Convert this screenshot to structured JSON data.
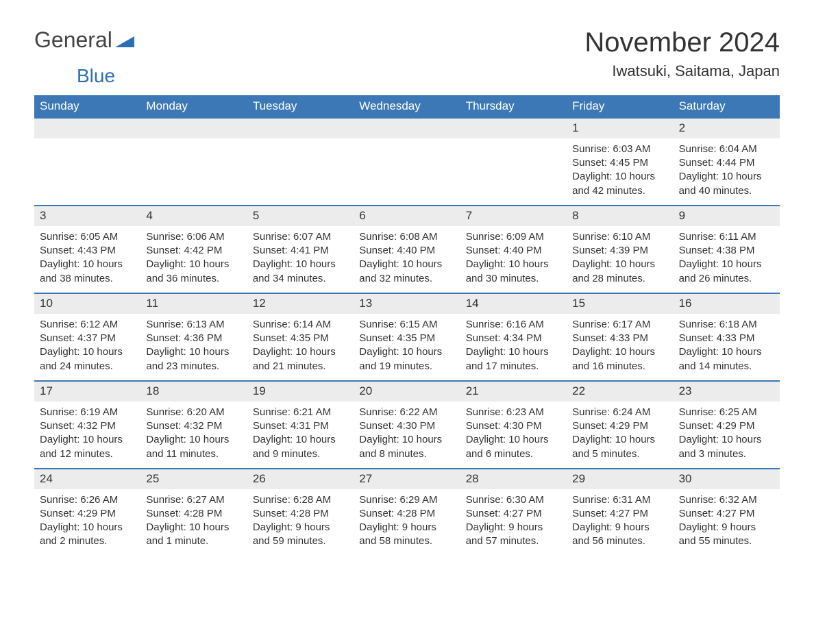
{
  "logo": {
    "text1": "General",
    "text2": "Blue"
  },
  "title": "November 2024",
  "location": "Iwatsuki, Saitama, Japan",
  "colors": {
    "header_bg": "#3b78b5",
    "header_text": "#ffffff",
    "band_bg": "#ececec",
    "row_border": "#3b78b5",
    "body_text": "#333333",
    "logo_blue": "#2d6fb5"
  },
  "daysOfWeek": [
    "Sunday",
    "Monday",
    "Tuesday",
    "Wednesday",
    "Thursday",
    "Friday",
    "Saturday"
  ],
  "weeks": [
    [
      {
        "n": "",
        "sunrise": "",
        "sunset": "",
        "daylight": ""
      },
      {
        "n": "",
        "sunrise": "",
        "sunset": "",
        "daylight": ""
      },
      {
        "n": "",
        "sunrise": "",
        "sunset": "",
        "daylight": ""
      },
      {
        "n": "",
        "sunrise": "",
        "sunset": "",
        "daylight": ""
      },
      {
        "n": "",
        "sunrise": "",
        "sunset": "",
        "daylight": ""
      },
      {
        "n": "1",
        "sunrise": "Sunrise: 6:03 AM",
        "sunset": "Sunset: 4:45 PM",
        "daylight": "Daylight: 10 hours and 42 minutes."
      },
      {
        "n": "2",
        "sunrise": "Sunrise: 6:04 AM",
        "sunset": "Sunset: 4:44 PM",
        "daylight": "Daylight: 10 hours and 40 minutes."
      }
    ],
    [
      {
        "n": "3",
        "sunrise": "Sunrise: 6:05 AM",
        "sunset": "Sunset: 4:43 PM",
        "daylight": "Daylight: 10 hours and 38 minutes."
      },
      {
        "n": "4",
        "sunrise": "Sunrise: 6:06 AM",
        "sunset": "Sunset: 4:42 PM",
        "daylight": "Daylight: 10 hours and 36 minutes."
      },
      {
        "n": "5",
        "sunrise": "Sunrise: 6:07 AM",
        "sunset": "Sunset: 4:41 PM",
        "daylight": "Daylight: 10 hours and 34 minutes."
      },
      {
        "n": "6",
        "sunrise": "Sunrise: 6:08 AM",
        "sunset": "Sunset: 4:40 PM",
        "daylight": "Daylight: 10 hours and 32 minutes."
      },
      {
        "n": "7",
        "sunrise": "Sunrise: 6:09 AM",
        "sunset": "Sunset: 4:40 PM",
        "daylight": "Daylight: 10 hours and 30 minutes."
      },
      {
        "n": "8",
        "sunrise": "Sunrise: 6:10 AM",
        "sunset": "Sunset: 4:39 PM",
        "daylight": "Daylight: 10 hours and 28 minutes."
      },
      {
        "n": "9",
        "sunrise": "Sunrise: 6:11 AM",
        "sunset": "Sunset: 4:38 PM",
        "daylight": "Daylight: 10 hours and 26 minutes."
      }
    ],
    [
      {
        "n": "10",
        "sunrise": "Sunrise: 6:12 AM",
        "sunset": "Sunset: 4:37 PM",
        "daylight": "Daylight: 10 hours and 24 minutes."
      },
      {
        "n": "11",
        "sunrise": "Sunrise: 6:13 AM",
        "sunset": "Sunset: 4:36 PM",
        "daylight": "Daylight: 10 hours and 23 minutes."
      },
      {
        "n": "12",
        "sunrise": "Sunrise: 6:14 AM",
        "sunset": "Sunset: 4:35 PM",
        "daylight": "Daylight: 10 hours and 21 minutes."
      },
      {
        "n": "13",
        "sunrise": "Sunrise: 6:15 AM",
        "sunset": "Sunset: 4:35 PM",
        "daylight": "Daylight: 10 hours and 19 minutes."
      },
      {
        "n": "14",
        "sunrise": "Sunrise: 6:16 AM",
        "sunset": "Sunset: 4:34 PM",
        "daylight": "Daylight: 10 hours and 17 minutes."
      },
      {
        "n": "15",
        "sunrise": "Sunrise: 6:17 AM",
        "sunset": "Sunset: 4:33 PM",
        "daylight": "Daylight: 10 hours and 16 minutes."
      },
      {
        "n": "16",
        "sunrise": "Sunrise: 6:18 AM",
        "sunset": "Sunset: 4:33 PM",
        "daylight": "Daylight: 10 hours and 14 minutes."
      }
    ],
    [
      {
        "n": "17",
        "sunrise": "Sunrise: 6:19 AM",
        "sunset": "Sunset: 4:32 PM",
        "daylight": "Daylight: 10 hours and 12 minutes."
      },
      {
        "n": "18",
        "sunrise": "Sunrise: 6:20 AM",
        "sunset": "Sunset: 4:32 PM",
        "daylight": "Daylight: 10 hours and 11 minutes."
      },
      {
        "n": "19",
        "sunrise": "Sunrise: 6:21 AM",
        "sunset": "Sunset: 4:31 PM",
        "daylight": "Daylight: 10 hours and 9 minutes."
      },
      {
        "n": "20",
        "sunrise": "Sunrise: 6:22 AM",
        "sunset": "Sunset: 4:30 PM",
        "daylight": "Daylight: 10 hours and 8 minutes."
      },
      {
        "n": "21",
        "sunrise": "Sunrise: 6:23 AM",
        "sunset": "Sunset: 4:30 PM",
        "daylight": "Daylight: 10 hours and 6 minutes."
      },
      {
        "n": "22",
        "sunrise": "Sunrise: 6:24 AM",
        "sunset": "Sunset: 4:29 PM",
        "daylight": "Daylight: 10 hours and 5 minutes."
      },
      {
        "n": "23",
        "sunrise": "Sunrise: 6:25 AM",
        "sunset": "Sunset: 4:29 PM",
        "daylight": "Daylight: 10 hours and 3 minutes."
      }
    ],
    [
      {
        "n": "24",
        "sunrise": "Sunrise: 6:26 AM",
        "sunset": "Sunset: 4:29 PM",
        "daylight": "Daylight: 10 hours and 2 minutes."
      },
      {
        "n": "25",
        "sunrise": "Sunrise: 6:27 AM",
        "sunset": "Sunset: 4:28 PM",
        "daylight": "Daylight: 10 hours and 1 minute."
      },
      {
        "n": "26",
        "sunrise": "Sunrise: 6:28 AM",
        "sunset": "Sunset: 4:28 PM",
        "daylight": "Daylight: 9 hours and 59 minutes."
      },
      {
        "n": "27",
        "sunrise": "Sunrise: 6:29 AM",
        "sunset": "Sunset: 4:28 PM",
        "daylight": "Daylight: 9 hours and 58 minutes."
      },
      {
        "n": "28",
        "sunrise": "Sunrise: 6:30 AM",
        "sunset": "Sunset: 4:27 PM",
        "daylight": "Daylight: 9 hours and 57 minutes."
      },
      {
        "n": "29",
        "sunrise": "Sunrise: 6:31 AM",
        "sunset": "Sunset: 4:27 PM",
        "daylight": "Daylight: 9 hours and 56 minutes."
      },
      {
        "n": "30",
        "sunrise": "Sunrise: 6:32 AM",
        "sunset": "Sunset: 4:27 PM",
        "daylight": "Daylight: 9 hours and 55 minutes."
      }
    ]
  ]
}
